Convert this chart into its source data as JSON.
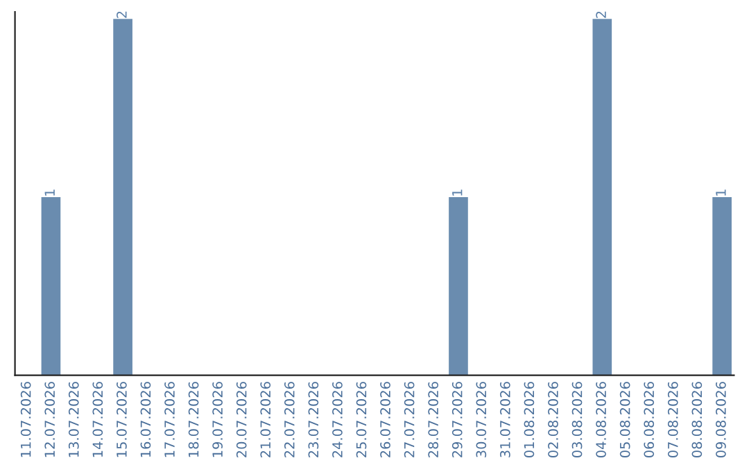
{
  "chart_data": {
    "type": "bar",
    "categories": [
      "11.07.2026",
      "12.07.2026",
      "13.07.2026",
      "14.07.2026",
      "15.07.2026",
      "16.07.2026",
      "17.07.2026",
      "18.07.2026",
      "19.07.2026",
      "20.07.2026",
      "21.07.2026",
      "22.07.2026",
      "23.07.2026",
      "24.07.2026",
      "25.07.2026",
      "26.07.2026",
      "27.07.2026",
      "28.07.2026",
      "29.07.2026",
      "30.07.2026",
      "31.07.2026",
      "01.08.2026",
      "02.08.2026",
      "03.08.2026",
      "04.08.2026",
      "05.08.2026",
      "06.08.2026",
      "07.08.2026",
      "08.08.2026",
      "09.08.2026"
    ],
    "values": [
      0,
      1,
      0,
      0,
      2,
      0,
      0,
      0,
      0,
      0,
      0,
      0,
      0,
      0,
      0,
      0,
      0,
      0,
      1,
      0,
      0,
      0,
      0,
      0,
      2,
      0,
      0,
      0,
      0,
      1
    ],
    "value_labels": [
      null,
      "1",
      null,
      null,
      "2",
      null,
      null,
      null,
      null,
      null,
      null,
      null,
      null,
      null,
      null,
      null,
      null,
      null,
      "1",
      null,
      null,
      null,
      null,
      null,
      "2",
      null,
      null,
      null,
      null,
      "1"
    ],
    "color": "#6a8caf",
    "ylim": [
      0,
      2.04
    ],
    "tick_labels": "x",
    "grid": false
  }
}
